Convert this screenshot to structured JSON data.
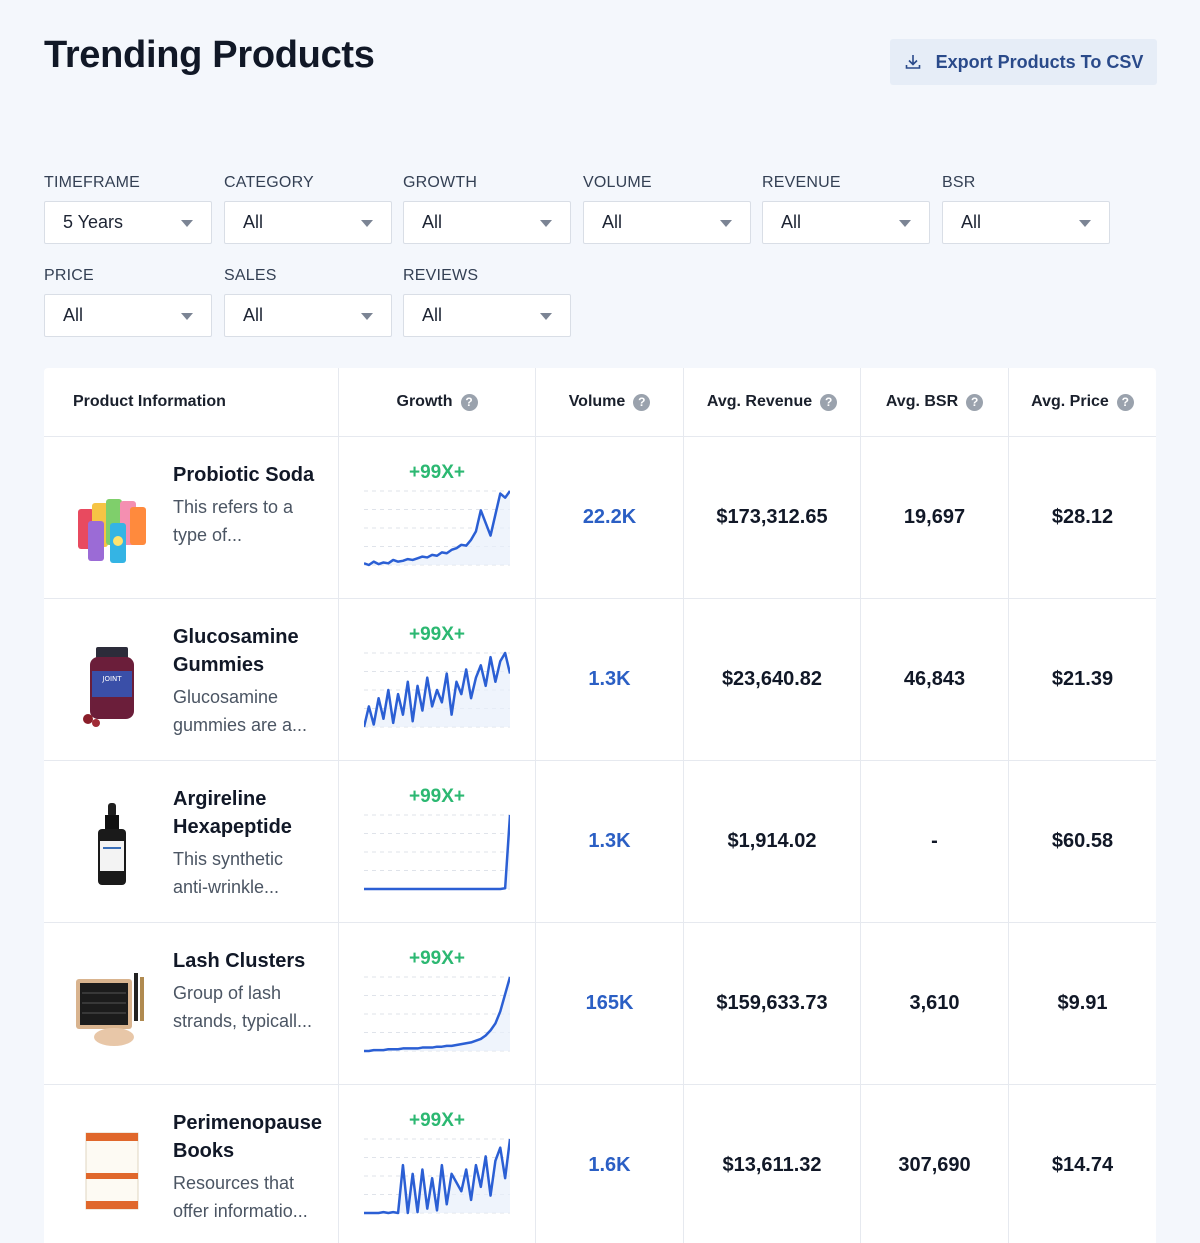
{
  "header": {
    "title": "Trending Products",
    "export_label": "Export Products To CSV"
  },
  "filters": [
    {
      "label": "TIMEFRAME",
      "value": "5 Years"
    },
    {
      "label": "CATEGORY",
      "value": "All"
    },
    {
      "label": "GROWTH",
      "value": "All"
    },
    {
      "label": "VOLUME",
      "value": "All"
    },
    {
      "label": "REVENUE",
      "value": "All"
    },
    {
      "label": "BSR",
      "value": "All"
    },
    {
      "label": "PRICE",
      "value": "All"
    },
    {
      "label": "SALES",
      "value": "All"
    },
    {
      "label": "REVIEWS",
      "value": "All"
    }
  ],
  "table": {
    "headers": [
      "Product Information",
      "Growth",
      "Volume",
      "Avg. Revenue",
      "Avg. BSR",
      "Avg. Price"
    ],
    "rows": [
      {
        "name": "Probiotic Soda",
        "desc1": "This refers to a",
        "desc2": "type of...",
        "growth": "+99X+",
        "volume": "22.2K",
        "revenue": "$173,312.65",
        "bsr": "19,697",
        "price": "$28.12",
        "trend": [
          12,
          10,
          14,
          11,
          13,
          12,
          16,
          14,
          15,
          17,
          16,
          18,
          20,
          19,
          22,
          21,
          25,
          24,
          28,
          30,
          34,
          33,
          40,
          50,
          75,
          60,
          45,
          70,
          95,
          90,
          98
        ]
      },
      {
        "name": "Glucosamine Gummies",
        "desc1": "Glucosamine",
        "desc2": "gummies are a...",
        "growth": "+99X+",
        "volume": "1.3K",
        "revenue": "$23,640.82",
        "bsr": "46,843",
        "price": "$21.39",
        "trend": [
          5,
          30,
          8,
          40,
          15,
          50,
          10,
          45,
          20,
          60,
          12,
          55,
          25,
          65,
          30,
          50,
          35,
          70,
          20,
          60,
          45,
          75,
          40,
          65,
          80,
          55,
          90,
          60,
          85,
          95,
          70
        ]
      },
      {
        "name": "Argireline Hexapeptide",
        "desc1": "This synthetic",
        "desc2": "anti-wrinkle...",
        "growth": "+99X+",
        "volume": "1.3K",
        "revenue": "$1,914.02",
        "bsr": "-",
        "price": "$60.58",
        "trend": [
          2,
          2,
          2,
          2,
          2,
          2,
          2,
          2,
          2,
          2,
          2,
          2,
          2,
          2,
          2,
          2,
          2,
          2,
          2,
          2,
          2,
          2,
          2,
          2,
          2,
          2,
          2,
          2,
          2,
          3,
          100
        ]
      },
      {
        "name": "Lash Clusters",
        "desc1": "Group of lash",
        "desc2": "strands, typicall...",
        "growth": "+99X+",
        "volume": "165K",
        "revenue": "$159,633.73",
        "bsr": "3,610",
        "price": "$9.91",
        "trend": [
          4,
          4,
          5,
          5,
          5,
          6,
          6,
          6,
          7,
          7,
          7,
          7,
          8,
          8,
          8,
          9,
          9,
          10,
          10,
          11,
          12,
          13,
          14,
          16,
          18,
          22,
          28,
          36,
          50,
          70,
          90
        ]
      },
      {
        "name": "Perimenopause Books",
        "desc1": "Resources that",
        "desc2": "offer informatio...",
        "growth": "+99X+",
        "volume": "1.6K",
        "revenue": "$13,611.32",
        "bsr": "307,690",
        "price": "$14.74",
        "trend": [
          5,
          5,
          5,
          5,
          6,
          5,
          6,
          5,
          60,
          5,
          50,
          6,
          55,
          10,
          45,
          8,
          60,
          15,
          50,
          40,
          30,
          55,
          20,
          60,
          35,
          70,
          25,
          65,
          80,
          45,
          90
        ]
      }
    ]
  },
  "colors": {
    "growth": "#2cb872",
    "accent": "#2b5fc4",
    "spark": "#2b5fd4"
  }
}
